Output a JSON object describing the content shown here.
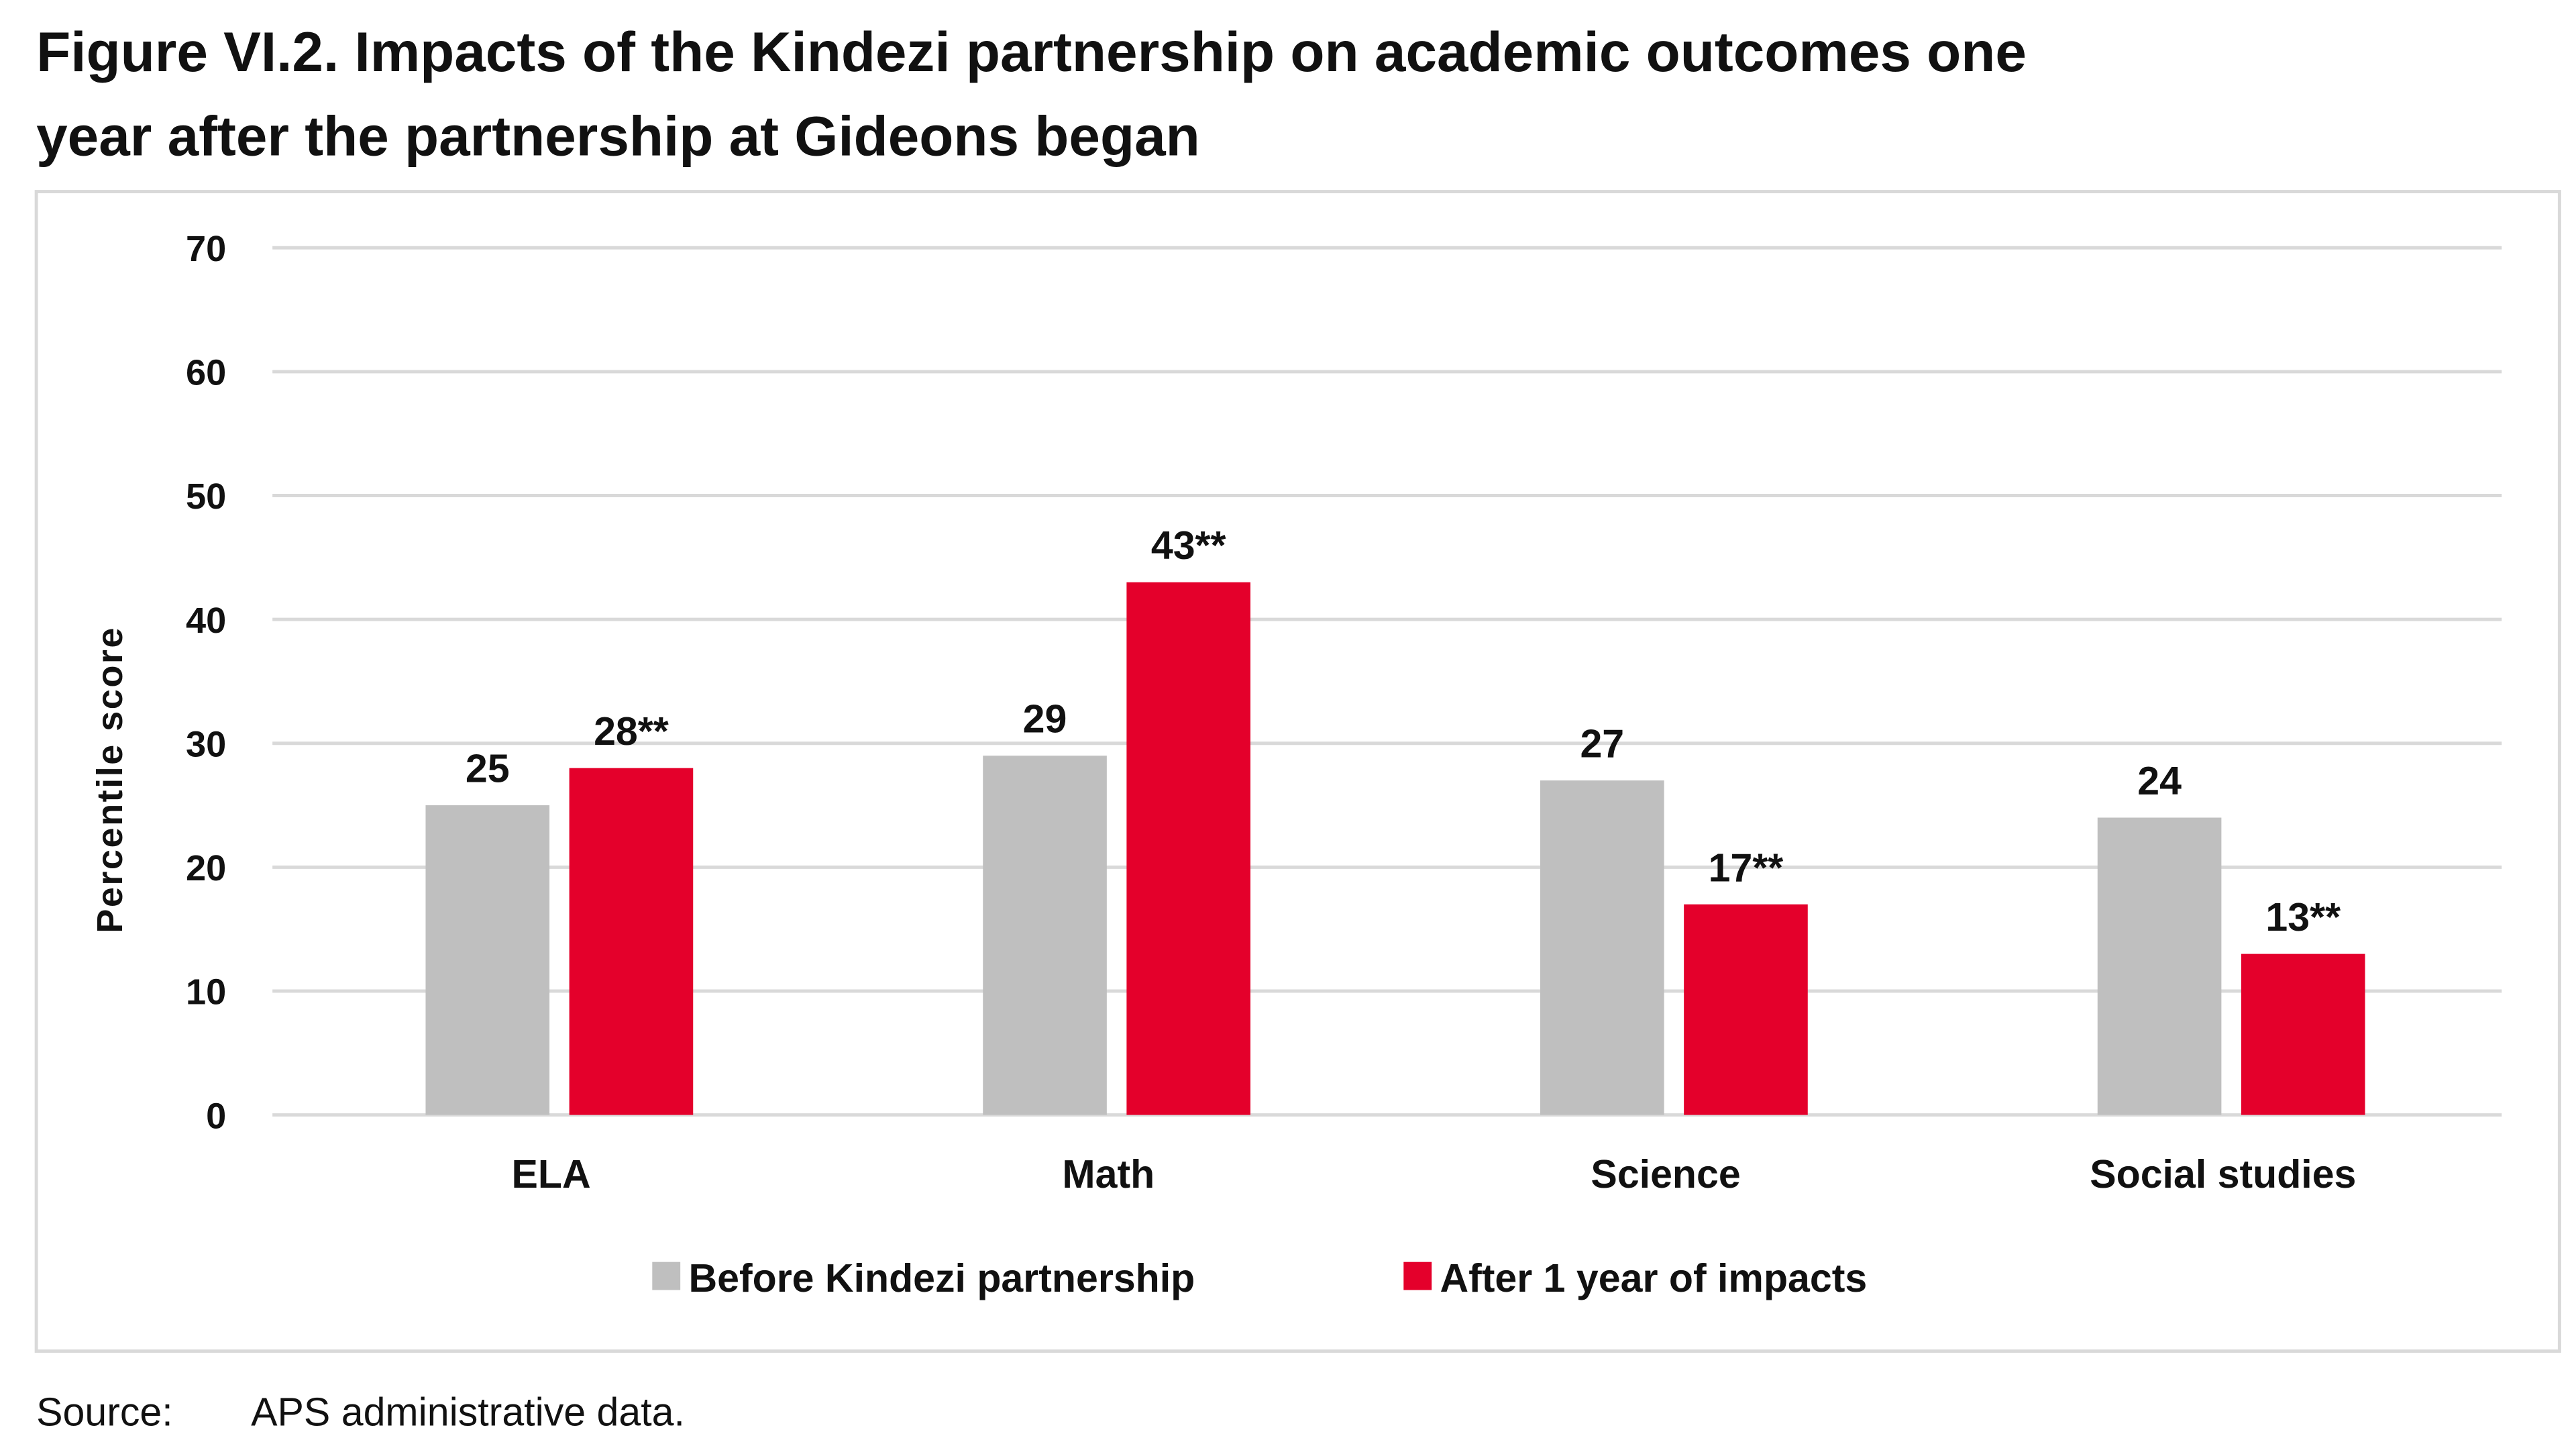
{
  "title_lines": [
    "Figure VI.2. Impacts of the Kindezi partnership on academic outcomes one",
    "year after the partnership at Gideons began"
  ],
  "source_label": "Source:",
  "source_text": "APS administrative data.",
  "chart_data": {
    "type": "bar",
    "title": "Figure VI.2. Impacts of the Kindezi partnership on academic outcomes one year after the partnership at Gideons began",
    "xlabel": "",
    "ylabel": "Percentile score",
    "ylim": [
      0,
      70
    ],
    "yticks": [
      0,
      10,
      20,
      30,
      40,
      50,
      60,
      70
    ],
    "grid": true,
    "legend_position": "bottom",
    "categories": [
      "ELA",
      "Math",
      "Science",
      "Social studies"
    ],
    "series": [
      {
        "name": "Before Kindezi partnership",
        "color": "#bfbfbf",
        "values": [
          25,
          29,
          27,
          24
        ],
        "labels": [
          "25",
          "29",
          "27",
          "24"
        ]
      },
      {
        "name": "After 1 year of impacts",
        "color": "#e4002b",
        "values": [
          28,
          43,
          17,
          13
        ],
        "labels": [
          "28**",
          "43**",
          "17**",
          "13**"
        ]
      }
    ]
  }
}
